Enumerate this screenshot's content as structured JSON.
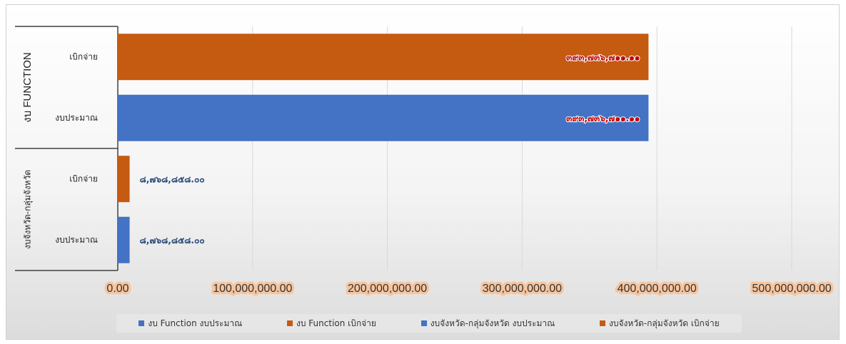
{
  "chart_data": {
    "type": "bar",
    "orientation": "horizontal",
    "groups": [
      {
        "label": "งบจังหวัด-กลุ่มจังหวัด",
        "categories": [
          {
            "label": "งบประมาณ",
            "value": 8768858,
            "data_label": "๘,๗๖๘,๘๕๘.๐๐",
            "color": "#4472c4",
            "series": "งบจังหวัด-กลุ่มจังหวัด งบประมาณ"
          },
          {
            "label": "เบิกจ่าย",
            "value": 8768858,
            "data_label": "๘,๗๖๘,๘๕๘.๐๐",
            "color": "#c55a11",
            "series": "งบจังหวัด-กลุ่มจังหวัด เบิกจ่าย"
          }
        ]
      },
      {
        "label": "งบ FUNCTION",
        "categories": [
          {
            "label": "งบประมาณ",
            "value": 393736711.11,
            "data_label": "๓๙๓,๗๓๖,๗๑๑.๑๑",
            "color": "#4472c4",
            "series": "งบ Function งบประมาณ"
          },
          {
            "label": "เบิกจ่าย",
            "value": 393736711.11,
            "data_label": "๓๙๓,๗๓๖,๗๑๑.๑๑",
            "color": "#c55a11",
            "series": "งบ Function เบิกจ่าย"
          }
        ]
      }
    ],
    "xlim": [
      0,
      500000000
    ],
    "xticks": [
      {
        "value": 0,
        "label": "0.00"
      },
      {
        "value": 100000000,
        "label": "100,000,000.00"
      },
      {
        "value": 200000000,
        "label": "200,000,000.00"
      },
      {
        "value": 300000000,
        "label": "300,000,000.00"
      },
      {
        "value": 400000000,
        "label": "400,000,000.00"
      },
      {
        "value": 500000000,
        "label": "500,000,000.00"
      }
    ],
    "grid": true,
    "legend_position": "bottom",
    "legend": [
      {
        "name": "งบ Function งบประมาณ",
        "color": "#4472c4"
      },
      {
        "name": "งบ Function เบิกจ่าย",
        "color": "#c55a11"
      },
      {
        "name": "งบจังหวัด-กลุ่มจังหวัด งบประมาณ",
        "color": "#4472c4"
      },
      {
        "name": "งบจังหวัด-กลุ่มจังหวัด เบิกจ่าย",
        "color": "#c55a11"
      }
    ],
    "title": "",
    "xlabel": "",
    "ylabel": ""
  }
}
